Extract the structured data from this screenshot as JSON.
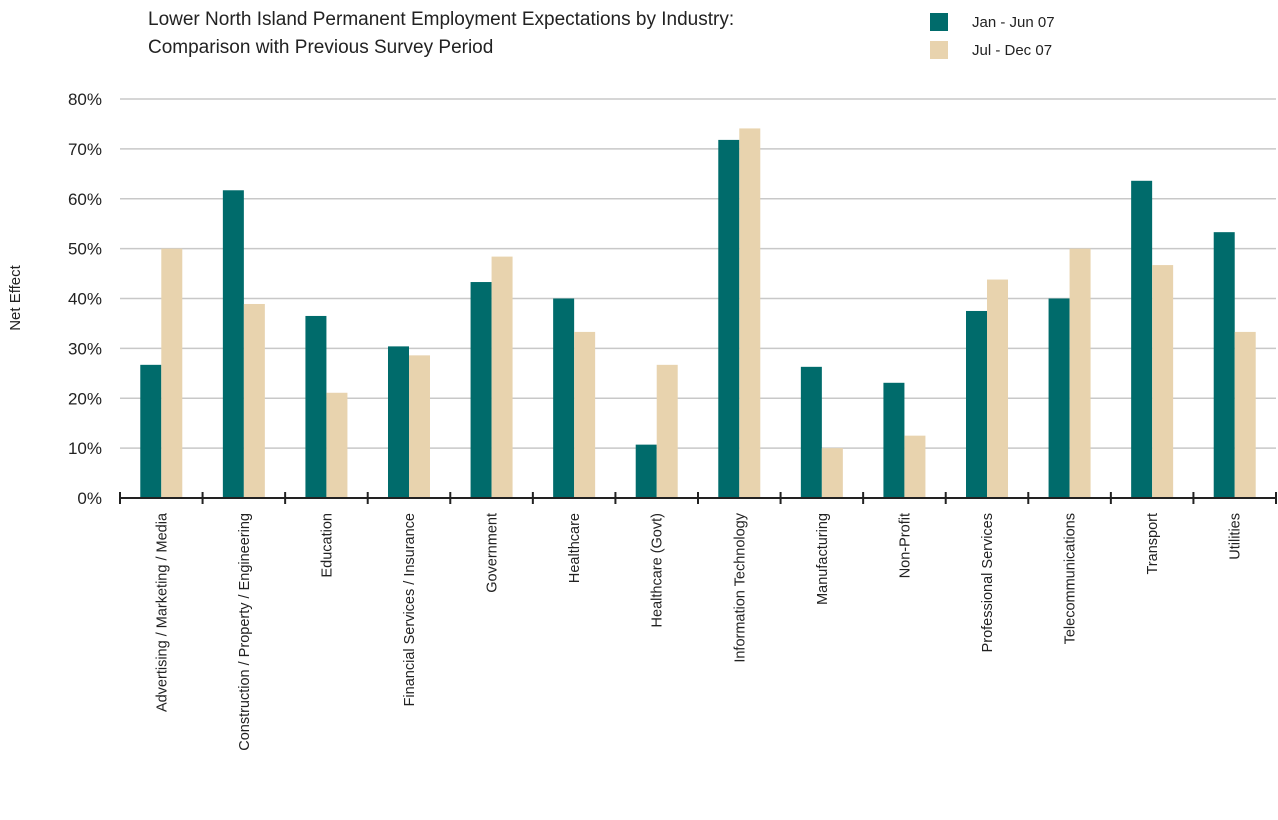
{
  "chart_data": {
    "type": "bar",
    "title_lines": [
      "Lower North Island Permanent Employment Expectations by Industry:",
      "Comparison with Previous Survey Period"
    ],
    "xlabel": "",
    "ylabel": "Net Effect",
    "ylim": [
      0,
      80
    ],
    "yticks": [
      "0%",
      "10%",
      "20%",
      "30%",
      "40%",
      "50%",
      "60%",
      "70%",
      "80%"
    ],
    "grid": true,
    "legend_position": "top-right",
    "categories": [
      "Advertising / Marketing / Media",
      "Construction / Property / Engineering",
      "Education",
      "Financial Services / Insurance",
      "Government",
      "Healthcare",
      "Healthcare (Govt)",
      "Information Technology",
      "Manufacturing",
      "Non-Profit",
      "Professional Services",
      "Telecommunications",
      "Transport",
      "Utilities"
    ],
    "series": [
      {
        "name": "Jan - Jun 07",
        "color": "#006b6b",
        "values": [
          26.7,
          61.7,
          36.5,
          30.4,
          43.3,
          40.0,
          10.7,
          71.8,
          26.3,
          23.1,
          37.5,
          40.0,
          63.6,
          53.3
        ]
      },
      {
        "name": "Jul - Dec 07",
        "color": "#e8d3ae",
        "values": [
          50.0,
          38.9,
          21.1,
          28.6,
          48.4,
          33.3,
          26.7,
          74.1,
          10.0,
          12.5,
          43.8,
          50.0,
          46.7,
          33.3
        ]
      }
    ]
  }
}
